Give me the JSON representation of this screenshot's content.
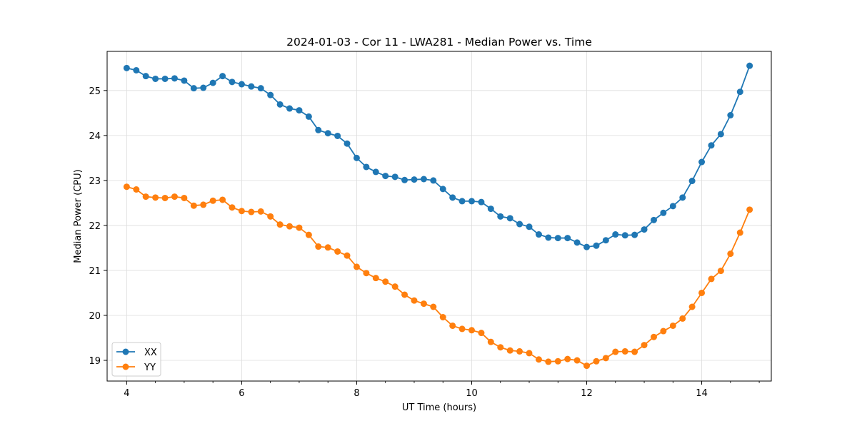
{
  "chart_data": {
    "type": "line",
    "title": "2024-01-03 - Cor 11 - LWA281 - Median Power vs. Time",
    "xlabel": "UT Time (hours)",
    "ylabel": "Median Power (CPU)",
    "xlim": [
      3.66,
      15.21
    ],
    "ylim": [
      18.54,
      25.87
    ],
    "xticks": [
      4,
      6,
      8,
      10,
      12,
      14
    ],
    "xtick_labels": [
      "4",
      "6",
      "8",
      "10",
      "12",
      "14"
    ],
    "yticks": [
      19,
      20,
      21,
      22,
      23,
      24,
      25
    ],
    "ytick_labels": [
      "19",
      "20",
      "21",
      "22",
      "23",
      "24",
      "25"
    ],
    "grid": true,
    "legend_position": "lower-left",
    "x": [
      4.0,
      4.167,
      4.333,
      4.5,
      4.667,
      4.833,
      5.0,
      5.167,
      5.333,
      5.5,
      5.667,
      5.833,
      6.0,
      6.167,
      6.333,
      6.5,
      6.667,
      6.833,
      7.0,
      7.167,
      7.333,
      7.5,
      7.667,
      7.833,
      8.0,
      8.167,
      8.333,
      8.5,
      8.667,
      8.833,
      9.0,
      9.167,
      9.333,
      9.5,
      9.667,
      9.833,
      10.0,
      10.167,
      10.333,
      10.5,
      10.667,
      10.833,
      11.0,
      11.167,
      11.333,
      11.5,
      11.667,
      11.833,
      12.0,
      12.167,
      12.333,
      12.5,
      12.667,
      12.833,
      13.0,
      13.167,
      13.333,
      13.5,
      13.667,
      13.833,
      14.0,
      14.167,
      14.333,
      14.5,
      14.667,
      14.833
    ],
    "series": [
      {
        "name": "XX",
        "color": "#1f77b4",
        "values": [
          25.5,
          25.45,
          25.32,
          25.26,
          25.26,
          25.27,
          25.22,
          25.05,
          25.06,
          25.17,
          25.32,
          25.19,
          25.14,
          25.09,
          25.05,
          24.9,
          24.69,
          24.6,
          24.56,
          24.42,
          24.12,
          24.05,
          23.99,
          23.82,
          23.5,
          23.3,
          23.19,
          23.1,
          23.08,
          23.01,
          23.02,
          23.03,
          23.0,
          22.81,
          22.62,
          22.54,
          22.54,
          22.52,
          22.37,
          22.2,
          22.16,
          22.03,
          21.97,
          21.8,
          21.73,
          21.72,
          21.72,
          21.62,
          21.52,
          21.55,
          21.67,
          21.8,
          21.78,
          21.79,
          21.91,
          22.12,
          22.28,
          22.43,
          22.62,
          22.99,
          23.41,
          23.78,
          24.03,
          24.45,
          24.97,
          25.55
        ]
      },
      {
        "name": "YY",
        "color": "#ff7f0e",
        "values": [
          22.86,
          22.8,
          22.64,
          22.62,
          22.61,
          22.64,
          22.61,
          22.44,
          22.46,
          22.55,
          22.57,
          22.4,
          22.32,
          22.3,
          22.31,
          22.2,
          22.02,
          21.98,
          21.95,
          21.79,
          21.53,
          21.51,
          21.42,
          21.33,
          21.08,
          20.94,
          20.83,
          20.75,
          20.64,
          20.46,
          20.33,
          20.26,
          20.19,
          19.96,
          19.77,
          19.7,
          19.67,
          19.61,
          19.41,
          19.29,
          19.22,
          19.2,
          19.16,
          19.02,
          18.97,
          18.98,
          19.03,
          19.0,
          18.88,
          18.98,
          19.05,
          19.19,
          19.2,
          19.19,
          19.34,
          19.52,
          19.65,
          19.77,
          19.93,
          20.19,
          20.5,
          20.81,
          20.99,
          21.37,
          21.84,
          22.35
        ]
      }
    ]
  }
}
